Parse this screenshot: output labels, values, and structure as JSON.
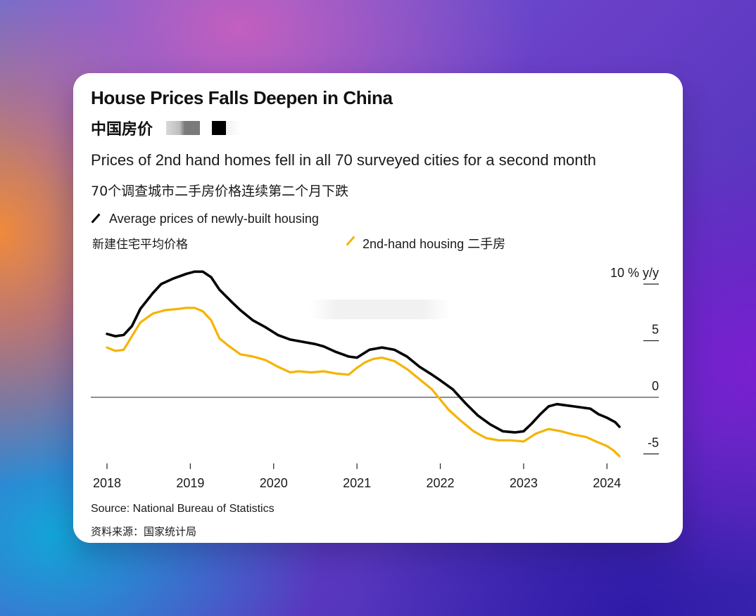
{
  "card": {
    "title": "House Prices Falls Deepen in China",
    "title_cn": "中国房价",
    "subtitle": "Prices of 2nd hand homes fell in all 70 surveyed cities for a second month",
    "subtitle_cn": "70个调查城市二手房价格连续第二个月下跌",
    "source": "Source: National Bureau of Statistics",
    "source_cn": "资料来源：国家统计局"
  },
  "legend": {
    "new_label": "Average prices of newly-built housing",
    "new_label_cn": "新建住宅平均价格",
    "second_label": "2nd-hand housing 二手房"
  },
  "colors": {
    "new_housing": "#000000",
    "second_hand": "#f5b301",
    "background_card": "#ffffff"
  },
  "chart_data": {
    "type": "line",
    "title": "House Prices Falls Deepen in China",
    "subtitle": "Prices of 2nd hand homes fell in all 70 surveyed cities for a second month",
    "xlabel": "",
    "ylabel": "10 % y/y",
    "x_ticks": [
      "2018",
      "2019",
      "2020",
      "2021",
      "2022",
      "2023",
      "2024"
    ],
    "y_ticks": [
      {
        "value": 10,
        "label": "10 % y/y"
      },
      {
        "value": 5,
        "label": "5"
      },
      {
        "value": 0,
        "label": "0"
      },
      {
        "value": -5,
        "label": "-5"
      }
    ],
    "xlim": [
      2018.0,
      2024.3
    ],
    "ylim": [
      -5.5,
      11
    ],
    "grid": false,
    "legend_position": "top",
    "series": [
      {
        "name": "Average prices of newly-built housing",
        "color": "#000000",
        "points": [
          [
            2018.0,
            5.6
          ],
          [
            2018.1,
            5.4
          ],
          [
            2018.2,
            5.5
          ],
          [
            2018.3,
            6.3
          ],
          [
            2018.4,
            7.8
          ],
          [
            2018.55,
            9.2
          ],
          [
            2018.65,
            10.0
          ],
          [
            2018.8,
            10.5
          ],
          [
            2018.95,
            10.9
          ],
          [
            2019.05,
            11.1
          ],
          [
            2019.15,
            11.1
          ],
          [
            2019.25,
            10.6
          ],
          [
            2019.35,
            9.5
          ],
          [
            2019.5,
            8.4
          ],
          [
            2019.6,
            7.7
          ],
          [
            2019.75,
            6.8
          ],
          [
            2019.9,
            6.2
          ],
          [
            2020.05,
            5.5
          ],
          [
            2020.2,
            5.1
          ],
          [
            2020.35,
            4.9
          ],
          [
            2020.5,
            4.7
          ],
          [
            2020.6,
            4.5
          ],
          [
            2020.75,
            4.0
          ],
          [
            2020.9,
            3.6
          ],
          [
            2021.0,
            3.5
          ],
          [
            2021.15,
            4.2
          ],
          [
            2021.3,
            4.4
          ],
          [
            2021.45,
            4.2
          ],
          [
            2021.6,
            3.6
          ],
          [
            2021.75,
            2.7
          ],
          [
            2021.9,
            2.0
          ],
          [
            2022.0,
            1.5
          ],
          [
            2022.15,
            0.7
          ],
          [
            2022.3,
            -0.5
          ],
          [
            2022.45,
            -1.6
          ],
          [
            2022.6,
            -2.4
          ],
          [
            2022.75,
            -3.0
          ],
          [
            2022.9,
            -3.1
          ],
          [
            2023.0,
            -3.0
          ],
          [
            2023.1,
            -2.3
          ],
          [
            2023.2,
            -1.5
          ],
          [
            2023.3,
            -0.8
          ],
          [
            2023.4,
            -0.6
          ],
          [
            2023.5,
            -0.7
          ],
          [
            2023.6,
            -0.8
          ],
          [
            2023.7,
            -0.9
          ],
          [
            2023.8,
            -1.0
          ],
          [
            2023.9,
            -1.5
          ],
          [
            2024.0,
            -1.8
          ],
          [
            2024.1,
            -2.2
          ],
          [
            2024.15,
            -2.6
          ]
        ]
      },
      {
        "name": "2nd-hand housing 二手房",
        "color": "#f5b301",
        "points": [
          [
            2018.0,
            4.4
          ],
          [
            2018.1,
            4.1
          ],
          [
            2018.2,
            4.2
          ],
          [
            2018.3,
            5.4
          ],
          [
            2018.4,
            6.6
          ],
          [
            2018.55,
            7.4
          ],
          [
            2018.7,
            7.7
          ],
          [
            2018.85,
            7.8
          ],
          [
            2018.95,
            7.9
          ],
          [
            2019.05,
            7.9
          ],
          [
            2019.15,
            7.6
          ],
          [
            2019.25,
            6.8
          ],
          [
            2019.35,
            5.2
          ],
          [
            2019.45,
            4.6
          ],
          [
            2019.6,
            3.8
          ],
          [
            2019.75,
            3.6
          ],
          [
            2019.9,
            3.3
          ],
          [
            2020.05,
            2.7
          ],
          [
            2020.2,
            2.2
          ],
          [
            2020.3,
            2.3
          ],
          [
            2020.45,
            2.2
          ],
          [
            2020.6,
            2.3
          ],
          [
            2020.75,
            2.1
          ],
          [
            2020.9,
            2.0
          ],
          [
            2021.0,
            2.6
          ],
          [
            2021.1,
            3.1
          ],
          [
            2021.2,
            3.4
          ],
          [
            2021.3,
            3.5
          ],
          [
            2021.45,
            3.2
          ],
          [
            2021.6,
            2.5
          ],
          [
            2021.75,
            1.6
          ],
          [
            2021.9,
            0.7
          ],
          [
            2022.0,
            -0.2
          ],
          [
            2022.1,
            -1.1
          ],
          [
            2022.25,
            -2.1
          ],
          [
            2022.4,
            -3.0
          ],
          [
            2022.55,
            -3.6
          ],
          [
            2022.7,
            -3.8
          ],
          [
            2022.85,
            -3.8
          ],
          [
            2023.0,
            -3.9
          ],
          [
            2023.15,
            -3.2
          ],
          [
            2023.3,
            -2.8
          ],
          [
            2023.45,
            -3.0
          ],
          [
            2023.6,
            -3.3
          ],
          [
            2023.75,
            -3.5
          ],
          [
            2023.9,
            -4.0
          ],
          [
            2024.0,
            -4.3
          ],
          [
            2024.08,
            -4.7
          ],
          [
            2024.15,
            -5.2
          ]
        ]
      }
    ]
  }
}
